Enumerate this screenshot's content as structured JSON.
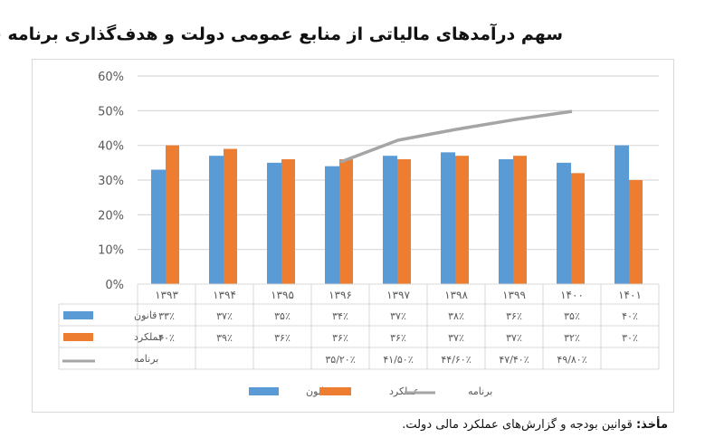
{
  "title": "سهم درآمدهای مالیاتی از منابع عمومی دولت و هدف‌گذاری برنامه ششم",
  "source": {
    "label": "مأخذ:",
    "text": "قوانین بودجه و گزارش‌های عملکرد مالی دولت."
  },
  "colors": {
    "law": "#5b9bd5",
    "performance": "#ed7d31",
    "program": "#a5a5a5",
    "grid": "#d9d9d9",
    "axis_text": "#595959"
  },
  "chart_data": {
    "type": "bar",
    "title": "سهم درآمدهای مالیاتی از منابع عمومی دولت و هدف‌گذاری برنامه ششم",
    "xlabel": "",
    "ylabel": "",
    "ylim": [
      0,
      60
    ],
    "yticks": [
      "0%",
      "10%",
      "20%",
      "30%",
      "40%",
      "50%",
      "60%"
    ],
    "grid": true,
    "legend_position": "bottom",
    "categories": [
      "۱۳۹۳",
      "۱۳۹۴",
      "۱۳۹۵",
      "۱۳۹۶",
      "۱۳۹۷",
      "۱۳۹۸",
      "۱۳۹۹",
      "۱۴۰۰",
      "۱۴۰۱"
    ],
    "series": [
      {
        "name": "قانون",
        "kind": "bar",
        "values": [
          33,
          37,
          35,
          34,
          37,
          38,
          36,
          35,
          40
        ],
        "labels": [
          "۳۳٪",
          "۳۷٪",
          "۳۵٪",
          "۳۴٪",
          "۳۷٪",
          "۳۸٪",
          "۳۶٪",
          "۳۵٪",
          "۴۰٪"
        ]
      },
      {
        "name": "عملکرد",
        "kind": "bar",
        "values": [
          40,
          39,
          36,
          36,
          36,
          37,
          37,
          32,
          30
        ],
        "labels": [
          "۴۰٪",
          "۳۹٪",
          "۳۶٪",
          "۳۶٪",
          "۳۶٪",
          "۳۷٪",
          "۳۷٪",
          "۳۲٪",
          "۳۰٪"
        ]
      },
      {
        "name": "برنامه",
        "kind": "line",
        "values": [
          null,
          null,
          null,
          35.2,
          41.5,
          44.6,
          47.4,
          49.8,
          null
        ],
        "labels": [
          "",
          "",
          "",
          "۳۵/۲۰٪",
          "۴۱/۵۰٪",
          "۴۴/۶۰٪",
          "۴۷/۴۰٪",
          "۴۹/۸۰٪",
          ""
        ]
      }
    ],
    "data_table": true
  },
  "legend": [
    {
      "name": "قانون",
      "kind": "bar"
    },
    {
      "name": "عملکرد",
      "kind": "bar"
    },
    {
      "name": "برنامه",
      "kind": "line"
    }
  ]
}
